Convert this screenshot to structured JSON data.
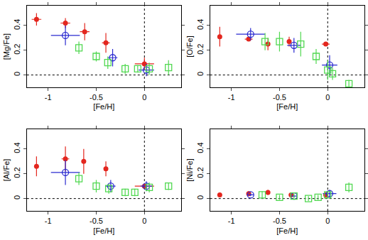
{
  "chart_data": [
    {
      "type": "scatter",
      "xlabel": "[Fe/H]",
      "ylabel": "[Mg/Fe]",
      "xlim": [
        -1.22,
        0.38
      ],
      "ylim": [
        -0.1,
        0.56
      ],
      "xticks": [
        -1,
        -0.5,
        0
      ],
      "yticks": [
        0,
        0.2,
        0.4
      ],
      "ref_lines": {
        "x": [
          0
        ],
        "y": [
          0
        ]
      },
      "series": [
        {
          "color": "#e3261e",
          "marker": "circle",
          "x": [
            -1.12,
            -0.82,
            -0.62,
            -0.4,
            0.0
          ],
          "values": [
            0.45,
            0.42,
            0.35,
            0.26,
            0.09
          ],
          "xerr": [
            0.05,
            0.05,
            0.05,
            0.04,
            0.1
          ],
          "yerr": [
            0.05,
            0.04,
            0.07,
            0.08,
            0.05
          ]
        },
        {
          "color": "#2a2ad0",
          "marker": "circle-open",
          "x": [
            -0.82,
            -0.33,
            0.02
          ],
          "values": [
            0.32,
            0.14,
            0.04
          ],
          "xerr": [
            0.15,
            0.05,
            0.08
          ],
          "yerr": [
            0.08,
            0.07,
            0.05
          ]
        },
        {
          "color": "#50d850",
          "marker": "square-open",
          "x": [
            -0.68,
            -0.5,
            -0.38,
            -0.2,
            -0.07,
            0.05,
            0.25
          ],
          "values": [
            0.22,
            0.15,
            0.1,
            0.05,
            0.05,
            0.05,
            0.06
          ],
          "xerr": [
            0,
            0,
            0,
            0,
            0,
            0,
            0
          ],
          "yerr": [
            0.05,
            0.04,
            0.05,
            0.04,
            0.03,
            0.05,
            0.06
          ]
        }
      ]
    },
    {
      "type": "scatter",
      "xlabel": "[Fe/H]",
      "ylabel": "[O/Fe]",
      "xlim": [
        -1.22,
        0.38
      ],
      "ylim": [
        -0.1,
        0.56
      ],
      "xticks": [
        -1,
        -0.5,
        0
      ],
      "yticks": [
        0,
        0.2,
        0.4
      ],
      "ref_lines": {
        "x": [
          0
        ],
        "y": [
          0
        ]
      },
      "series": [
        {
          "color": "#e3261e",
          "marker": "circle",
          "x": [
            -1.12,
            -0.82,
            -0.62,
            -0.4,
            -0.02
          ],
          "values": [
            0.31,
            0.29,
            0.25,
            0.27,
            0.25
          ],
          "xerr": [
            0,
            0.04,
            0,
            0,
            0.04
          ],
          "yerr": [
            0.08,
            0.01,
            0.05,
            0.04,
            0.01
          ]
        },
        {
          "color": "#2a2ad0",
          "marker": "circle-open",
          "x": [
            -0.8,
            -0.35,
            0.02
          ],
          "values": [
            0.33,
            0.24,
            0.08
          ],
          "xerr": [
            0.15,
            0.07,
            0.08
          ],
          "yerr": [
            0.05,
            0.06,
            0.08
          ]
        },
        {
          "color": "#50d850",
          "marker": "square-open",
          "x": [
            -0.65,
            -0.5,
            -0.28,
            -0.12,
            0.0,
            0.05,
            0.22
          ],
          "values": [
            0.27,
            0.27,
            0.25,
            0.15,
            0.04,
            0.01,
            -0.07
          ],
          "xerr": [
            0,
            0,
            0,
            0,
            0,
            0,
            0
          ],
          "yerr": [
            0.07,
            0.08,
            0.1,
            0.06,
            0.08,
            0.05,
            0.03
          ]
        }
      ]
    },
    {
      "type": "scatter",
      "xlabel": "[Fe/H]",
      "ylabel": "[Al/Fe]",
      "xlim": [
        -1.22,
        0.38
      ],
      "ylim": [
        -0.1,
        0.56
      ],
      "xticks": [
        -1,
        -0.5,
        0
      ],
      "yticks": [
        0,
        0.2,
        0.4
      ],
      "ref_lines": {
        "x": [
          0
        ],
        "y": [
          0
        ]
      },
      "series": [
        {
          "color": "#e3261e",
          "marker": "circle",
          "x": [
            -1.12,
            -0.82,
            -0.63,
            -0.4,
            0.0
          ],
          "values": [
            0.26,
            0.32,
            0.3,
            0.24,
            0.1
          ],
          "xerr": [
            0,
            0.04,
            0,
            0,
            0.1
          ],
          "yerr": [
            0.08,
            0.1,
            0.1,
            0.06,
            0.02
          ]
        },
        {
          "color": "#2a2ad0",
          "marker": "circle-open",
          "x": [
            -0.82,
            -0.35,
            0.02
          ],
          "values": [
            0.21,
            0.1,
            0.1
          ],
          "xerr": [
            0.15,
            0.05,
            0.06
          ],
          "yerr": [
            0.1,
            0.05,
            0.04
          ]
        },
        {
          "color": "#50d850",
          "marker": "square-open",
          "x": [
            -0.68,
            -0.5,
            -0.37,
            -0.2,
            -0.1,
            0.05,
            0.25
          ],
          "values": [
            0.16,
            0.1,
            0.08,
            0.05,
            0.05,
            0.09,
            0.1
          ],
          "xerr": [
            0,
            0,
            0,
            0,
            0,
            0,
            0
          ],
          "yerr": [
            0.05,
            0.05,
            0.04,
            0.03,
            0.03,
            0.04,
            0.03
          ]
        }
      ]
    },
    {
      "type": "scatter",
      "xlabel": "[Fe/H]",
      "ylabel": "[Ni/Fe]",
      "xlim": [
        -1.22,
        0.38
      ],
      "ylim": [
        -0.1,
        0.56
      ],
      "xticks": [
        -1,
        -0.5,
        0
      ],
      "yticks": [
        0,
        0.2,
        0.4
      ],
      "ref_lines": {
        "x": [
          0
        ],
        "y": [
          0
        ]
      },
      "series": [
        {
          "color": "#e3261e",
          "marker": "circle",
          "x": [
            -1.12,
            -0.82,
            -0.62,
            -0.38,
            -0.02
          ],
          "values": [
            0.03,
            0.04,
            0.05,
            0.03,
            0.03
          ],
          "xerr": [
            0,
            0,
            0,
            0,
            0
          ],
          "yerr": [
            0.01,
            0.02,
            0.02,
            0.01,
            0.02
          ]
        },
        {
          "color": "#2a2ad0",
          "marker": "circle-open",
          "x": [
            -0.8,
            -0.35,
            0.02
          ],
          "values": [
            0.03,
            0.02,
            0.04
          ],
          "xerr": [
            0.03,
            0.03,
            0.07
          ],
          "yerr": [
            0.01,
            0.01,
            0.03
          ]
        },
        {
          "color": "#50d850",
          "marker": "square-open",
          "x": [
            -0.68,
            -0.5,
            -0.35,
            -0.2,
            -0.1,
            0.0,
            0.22
          ],
          "values": [
            0.03,
            0.01,
            0.02,
            0.0,
            0.01,
            0.03,
            0.09
          ],
          "xerr": [
            0,
            0,
            0,
            0,
            0,
            0,
            0
          ],
          "yerr": [
            0.03,
            0.02,
            0.02,
            0.02,
            0.02,
            0.02,
            0.04
          ]
        }
      ]
    }
  ]
}
